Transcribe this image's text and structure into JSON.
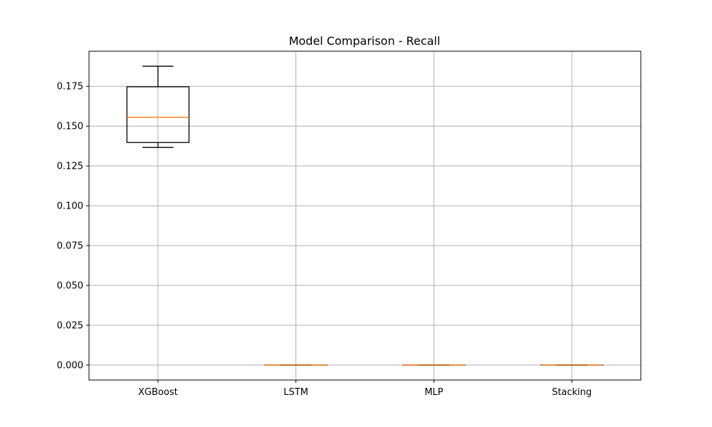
{
  "chart_data": {
    "type": "boxplot",
    "title": "Model Comparison - Recall",
    "xlabel": "",
    "ylabel": "",
    "categories": [
      "XGBoost",
      "LSTM",
      "MLP",
      "Stacking"
    ],
    "boxes": [
      {
        "name": "XGBoost",
        "whisker_low": 0.1366,
        "q1": 0.1397,
        "median": 0.1556,
        "q3": 0.1747,
        "whisker_high": 0.1876
      },
      {
        "name": "LSTM",
        "whisker_low": 0.0,
        "q1": 0.0,
        "median": 0.0,
        "q3": 0.0,
        "whisker_high": 0.0
      },
      {
        "name": "MLP",
        "whisker_low": 0.0,
        "q1": 0.0,
        "median": 0.0,
        "q3": 0.0,
        "whisker_high": 0.0
      },
      {
        "name": "Stacking",
        "whisker_low": 0.0,
        "q1": 0.0,
        "median": 0.0,
        "q3": 0.0,
        "whisker_high": 0.0
      }
    ],
    "yticks": [
      0.0,
      0.025,
      0.05,
      0.075,
      0.1,
      0.125,
      0.15,
      0.175
    ],
    "ytick_labels": [
      "0.000",
      "0.025",
      "0.050",
      "0.075",
      "0.100",
      "0.125",
      "0.150",
      "0.175"
    ],
    "ylim": [
      -0.0094,
      0.197
    ],
    "grid": true,
    "colors": {
      "box": "#000000",
      "median": "#ff7f0e",
      "grid": "#b0b0b0"
    }
  }
}
